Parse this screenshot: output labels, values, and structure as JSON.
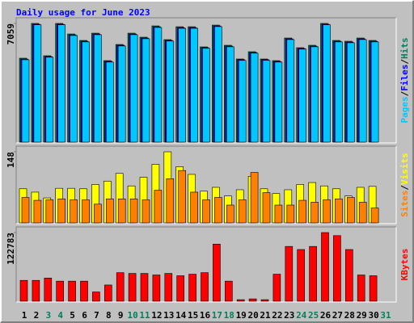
{
  "chart_data": {
    "type": "bar",
    "title": "Daily usage for June 2023",
    "categories": [
      "1",
      "2",
      "3",
      "4",
      "5",
      "6",
      "7",
      "8",
      "9",
      "10",
      "11",
      "12",
      "13",
      "14",
      "15",
      "16",
      "17",
      "18",
      "19",
      "20",
      "21",
      "22",
      "23",
      "24",
      "25",
      "26",
      "27",
      "28",
      "29",
      "30",
      "31"
    ],
    "category_colors": [
      "#000000",
      "#000000",
      "#00805c",
      "#00805c",
      "#000000",
      "#000000",
      "#000000",
      "#000000",
      "#000000",
      "#00805c",
      "#00805c",
      "#000000",
      "#000000",
      "#000000",
      "#000000",
      "#000000",
      "#00805c",
      "#00805c",
      "#000000",
      "#000000",
      "#000000",
      "#000000",
      "#000000",
      "#00805c",
      "#00805c",
      "#000000",
      "#000000",
      "#000000",
      "#000000",
      "#000000",
      "#00805c"
    ],
    "legend_separator": "/",
    "panels": [
      {
        "ylim": [
          0,
          7059
        ],
        "yticks": [
          7059
        ],
        "series": [
          {
            "name": "Hits",
            "color": "#00805c",
            "values": [
              4992,
              7059,
              5136,
              7059,
              6432,
              6048,
              6480,
              4848,
              5808,
              6480,
              6240,
              6912,
              6096,
              6864,
              6864,
              5664,
              6960,
              5760,
              4944,
              5376,
              4944,
              4848,
              6192,
              5616,
              5760,
              7059,
              6048,
              6000,
              6192,
              6048,
              null
            ]
          },
          {
            "name": "Files",
            "color": "#0000ff",
            "values": [
              4940,
              7010,
              5090,
              7010,
              6380,
              6000,
              6430,
              4800,
              5760,
              6430,
              6190,
              6860,
              6050,
              6810,
              6810,
              5620,
              6910,
              5710,
              4900,
              5330,
              4900,
              4800,
              6140,
              5570,
              5710,
              7010,
              6000,
              5950,
              6140,
              6000,
              null
            ]
          },
          {
            "name": "Pages",
            "color": "#00c8ff",
            "values": [
              4900,
              6980,
              5050,
              6980,
              6340,
              5960,
              6390,
              4760,
              5720,
              6390,
              6150,
              6820,
              6010,
              6770,
              6770,
              5580,
              6870,
              5670,
              4860,
              5290,
              4860,
              4760,
              6100,
              5530,
              5670,
              6980,
              5960,
              5910,
              6100,
              5960,
              null
            ]
          }
        ]
      },
      {
        "ylim": [
          0,
          148
        ],
        "yticks": [
          148
        ],
        "series": [
          {
            "name": "Visits",
            "color": "#ffff00",
            "values": [
              71,
              64,
              52,
              72,
              72,
              71,
              80,
              87,
              103,
              77,
              95,
              122,
              148,
              117,
              101,
              66,
              74,
              56,
              69,
              97,
              71,
              61,
              69,
              80,
              84,
              77,
              71,
              56,
              74,
              76,
              null
            ]
          },
          {
            "name": "Sites",
            "color": "#ff8000",
            "values": [
              53,
              47,
              48,
              50,
              48,
              48,
              39,
              50,
              50,
              50,
              48,
              68,
              92,
              109,
              64,
              48,
              53,
              37,
              48,
              105,
              63,
              37,
              37,
              47,
              43,
              48,
              50,
              53,
              43,
              31,
              null
            ]
          }
        ]
      },
      {
        "ylim": [
          0,
          122783
        ],
        "yticks": [
          122783
        ],
        "series": [
          {
            "name": "KBytes",
            "color": "#ff0000",
            "values": [
              37260,
              37260,
              41400,
              35880,
              35880,
              35880,
              16560,
              28980,
              51060,
              49680,
              49680,
              46920,
              49680,
              45540,
              48300,
              51060,
              102120,
              35880,
              2760,
              4140,
              2760,
              48300,
              97980,
              92460,
              97980,
              122783,
              117300,
              92460,
              46920,
              45540,
              null
            ]
          }
        ]
      }
    ]
  }
}
